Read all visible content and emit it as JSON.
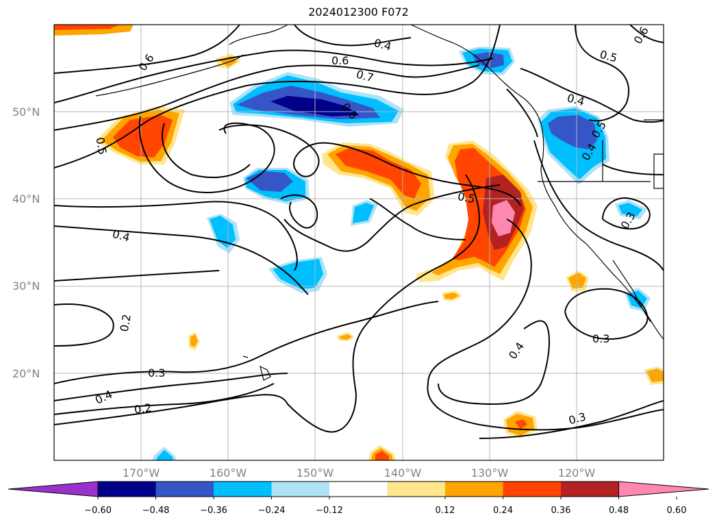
{
  "title": "2024012300 F072",
  "lat_labels": [
    "50°N",
    "40°N",
    "30°N",
    "20°N"
  ],
  "lon_labels": [
    "170°W",
    "160°W",
    "150°W",
    "140°W",
    "130°W",
    "120°W"
  ],
  "colorbar": {
    "ticks": [
      "−0.60",
      "−0.48",
      "−0.36",
      "−0.24",
      "−0.12",
      "0.12",
      "0.24",
      "0.36",
      "0.48",
      "0.60"
    ],
    "colors": [
      "#9932cc",
      "#00008b",
      "#3656c8",
      "#00bfff",
      "#ade2f7",
      "#ffffff",
      "#ffe68c",
      "#ffa500",
      "#ff4500",
      "#b22222",
      "#ff88b0"
    ]
  },
  "contour_labels": [
    "0.6",
    "0.4",
    "0.5",
    "0.6",
    "0.6",
    "0.7",
    "0.8",
    "0.4",
    "0.5",
    "0.5",
    "0.4",
    "0.5",
    "0.3",
    "0.4",
    "0.2",
    "0.3",
    "0.4",
    "0.3",
    "0.2",
    "0.3",
    "0.4"
  ]
}
